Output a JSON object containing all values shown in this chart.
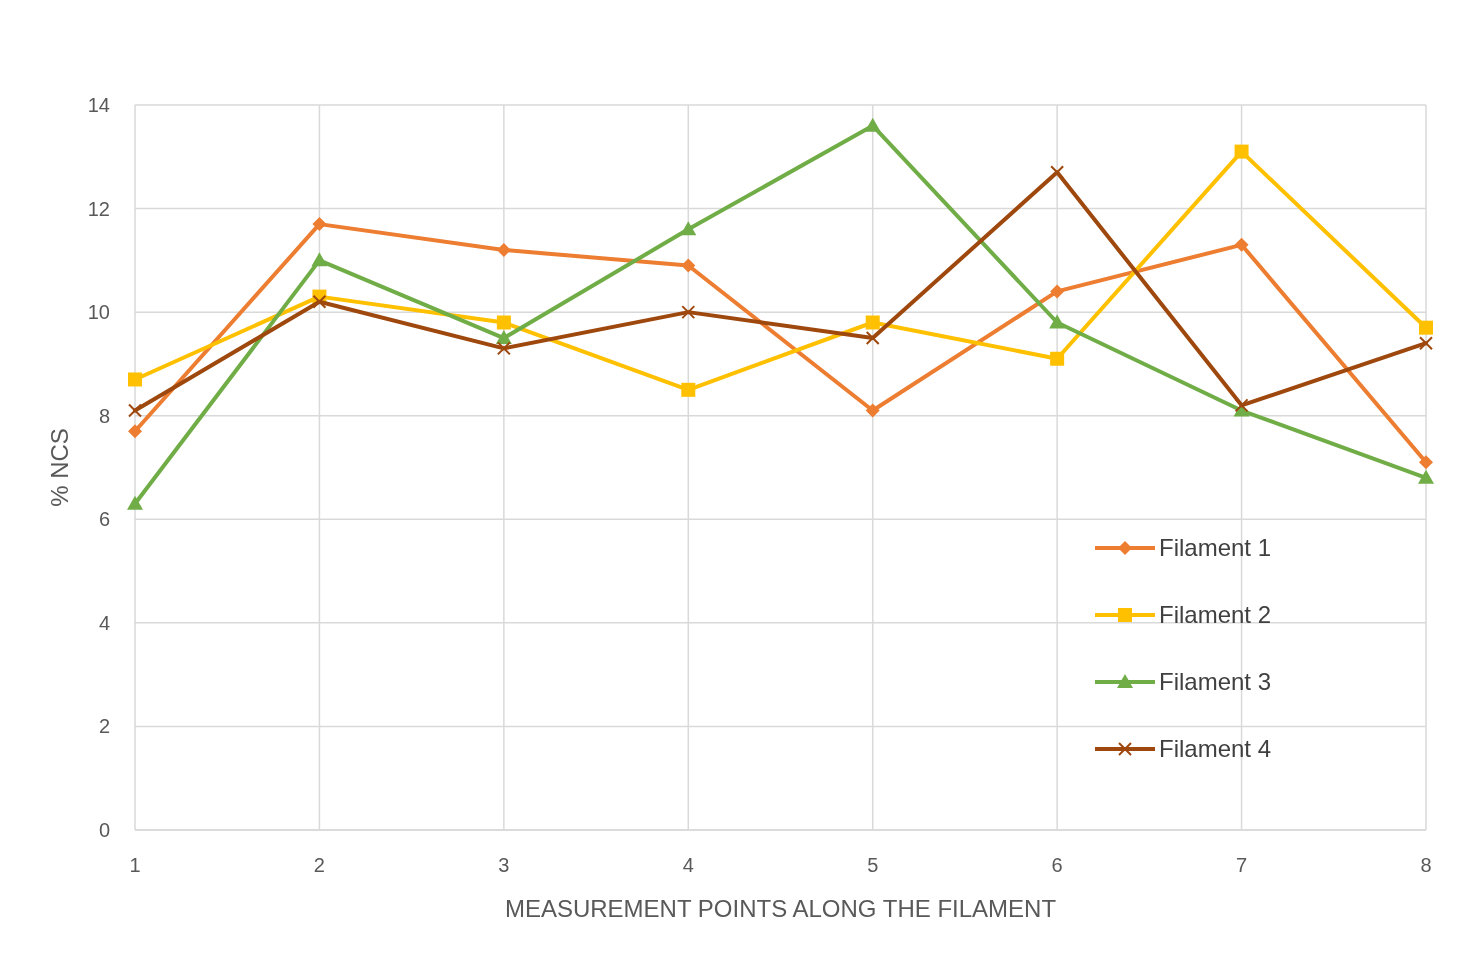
{
  "chart_data": {
    "type": "line",
    "xlabel": "MEASUREMENT POINTS ALONG THE FILAMENT",
    "ylabel": "% NCS",
    "x": [
      1,
      2,
      3,
      4,
      5,
      6,
      7,
      8
    ],
    "series": [
      {
        "name": "Filament 1",
        "color": "#ed7d31",
        "marker": "diamond",
        "values": [
          7.7,
          11.7,
          11.2,
          10.9,
          8.1,
          10.4,
          11.3,
          7.1
        ]
      },
      {
        "name": "Filament 2",
        "color": "#ffc000",
        "marker": "square",
        "values": [
          8.7,
          10.3,
          9.8,
          8.5,
          9.8,
          9.1,
          13.1,
          9.7
        ]
      },
      {
        "name": "Filament 3",
        "color": "#70ad47",
        "marker": "triangle",
        "values": [
          6.3,
          11.0,
          9.5,
          11.6,
          13.6,
          9.8,
          8.1,
          6.8
        ]
      },
      {
        "name": "Filament 4",
        "color": "#9e480e",
        "marker": "cross",
        "values": [
          8.1,
          10.2,
          9.3,
          10.0,
          9.5,
          12.7,
          8.2,
          9.4
        ]
      }
    ],
    "xlim": [
      1,
      8
    ],
    "xticks": [
      1,
      2,
      3,
      4,
      5,
      6,
      7,
      8
    ],
    "ylim": [
      0,
      14
    ],
    "yticks": [
      0,
      2,
      4,
      6,
      8,
      10,
      12,
      14
    ],
    "grid": true,
    "legend": "bottom right",
    "line_style": "solid"
  }
}
